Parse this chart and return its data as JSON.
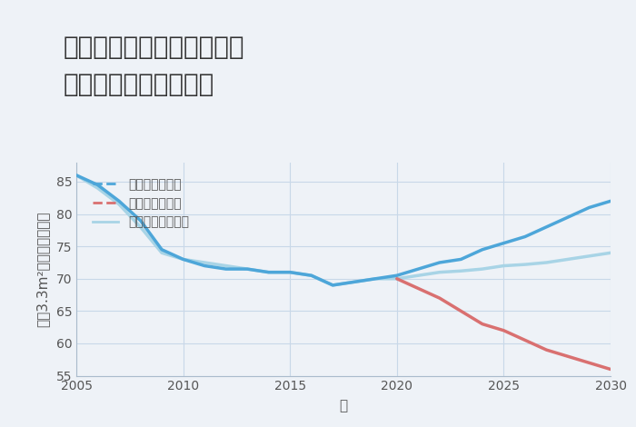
{
  "title": "奈良県奈良市月ヶ瀬石打の\n中古戸建ての価格推移",
  "xlabel": "年",
  "ylabel": "坪（3.3m²）単価（万円）",
  "background_color": "#eef2f7",
  "plot_background": "#eef2f7",
  "xlim": [
    2005,
    2030
  ],
  "ylim": [
    55,
    88
  ],
  "yticks": [
    55,
    60,
    65,
    70,
    75,
    80,
    85
  ],
  "xticks": [
    2005,
    2010,
    2015,
    2020,
    2025,
    2030
  ],
  "good_scenario": {
    "x": [
      2005,
      2006,
      2007,
      2008,
      2009,
      2010,
      2011,
      2012,
      2013,
      2014,
      2015,
      2016,
      2017,
      2018,
      2019,
      2020,
      2021,
      2022,
      2023,
      2024,
      2025,
      2026,
      2027,
      2028,
      2029,
      2030
    ],
    "y": [
      86.0,
      84.5,
      82.0,
      79.0,
      74.5,
      73.0,
      72.0,
      71.5,
      71.5,
      71.0,
      71.0,
      70.5,
      69.0,
      69.5,
      70.0,
      70.5,
      71.5,
      72.5,
      73.0,
      74.5,
      75.5,
      76.5,
      78.0,
      79.5,
      81.0,
      82.0
    ],
    "color": "#4da6d9",
    "linestyle": "-",
    "linewidth": 2.5,
    "label": "グッドシナリオ",
    "legend_linestyle": "--"
  },
  "bad_scenario": {
    "x": [
      2020,
      2021,
      2022,
      2023,
      2024,
      2025,
      2026,
      2027,
      2028,
      2029,
      2030
    ],
    "y": [
      70.0,
      68.5,
      67.0,
      65.0,
      63.0,
      62.0,
      60.5,
      59.0,
      58.0,
      57.0,
      56.0
    ],
    "color": "#d97070",
    "linestyle": "-",
    "linewidth": 2.5,
    "label": "バッドシナリオ",
    "legend_linestyle": "--"
  },
  "normal_scenario": {
    "x": [
      2005,
      2006,
      2007,
      2008,
      2009,
      2010,
      2011,
      2012,
      2013,
      2014,
      2015,
      2016,
      2017,
      2018,
      2019,
      2020,
      2021,
      2022,
      2023,
      2024,
      2025,
      2026,
      2027,
      2028,
      2029,
      2030
    ],
    "y": [
      86.0,
      84.0,
      81.5,
      78.0,
      74.0,
      73.0,
      72.5,
      72.0,
      71.5,
      71.0,
      71.0,
      70.5,
      69.0,
      69.5,
      70.0,
      70.0,
      70.5,
      71.0,
      71.2,
      71.5,
      72.0,
      72.2,
      72.5,
      73.0,
      73.5,
      74.0
    ],
    "color": "#a8d4e6",
    "linestyle": "-",
    "linewidth": 2.5,
    "label": "ノーマルシナリオ",
    "legend_linestyle": "-"
  },
  "title_fontsize": 20,
  "axis_fontsize": 11,
  "tick_fontsize": 10,
  "legend_fontsize": 10
}
